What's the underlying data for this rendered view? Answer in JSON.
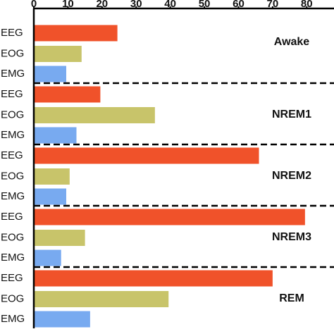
{
  "chart_data": {
    "type": "bar",
    "orientation": "horizontal",
    "categories": [
      "Awake",
      "NREM1",
      "NREM2",
      "NREM3",
      "REM"
    ],
    "series": [
      {
        "name": "EEG",
        "color": "#f0522a",
        "values": [
          24.5,
          19.5,
          66,
          79.5,
          70
        ]
      },
      {
        "name": "EOG",
        "color": "#c8c46a",
        "values": [
          14,
          35.5,
          10.5,
          15,
          39.5
        ]
      },
      {
        "name": "EMG",
        "color": "#78aaf0",
        "values": [
          9.5,
          12.5,
          9.5,
          8,
          16.5
        ]
      }
    ],
    "xlim": [
      0,
      88
    ],
    "xticks": [
      0,
      10,
      20,
      30,
      40,
      50,
      60,
      70,
      80
    ]
  }
}
